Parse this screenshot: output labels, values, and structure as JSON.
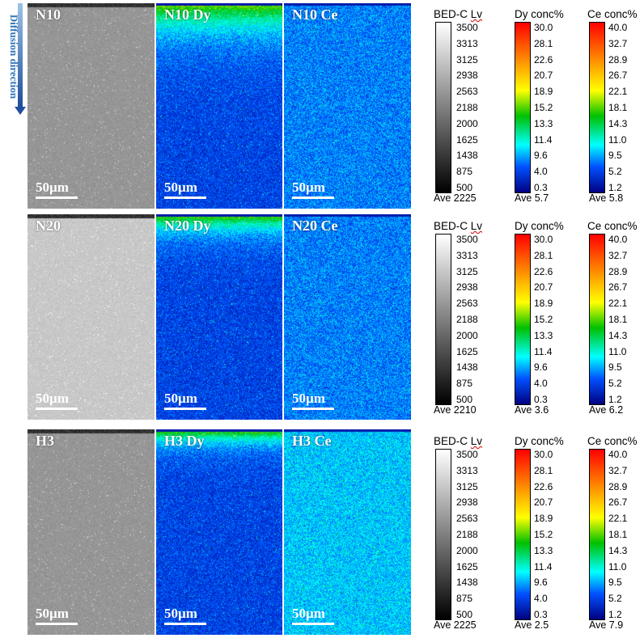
{
  "diffusion_label": "Diffusion direction",
  "rows": [
    {
      "bed_label": "N10",
      "dy_label": "N10 Dy",
      "ce_label": "N10 Ce",
      "scale": "50µm",
      "bed_legend": {
        "title": "BED-C Lv",
        "ticks": [
          "3500",
          "3313",
          "3125",
          "2938",
          "2563",
          "2188",
          "2000",
          "1625",
          "1438",
          "875",
          "500"
        ],
        "ave": "Ave 2225"
      },
      "dy_legend": {
        "title": "Dy conc%",
        "ticks": [
          "30.0",
          "28.1",
          "22.6",
          "20.7",
          "18.9",
          "15.2",
          "13.3",
          "11.4",
          "9.6",
          "4.0",
          "0.3"
        ],
        "ave": "Ave 5.7"
      },
      "ce_legend": {
        "title": "Ce conc%",
        "ticks": [
          "40.0",
          "32.7",
          "28.9",
          "26.7",
          "22.1",
          "18.1",
          "14.3",
          "11.0",
          "9.5",
          "5.2",
          "1.2"
        ],
        "ave": "Ave 5.8"
      }
    },
    {
      "bed_label": "N20",
      "dy_label": "N20 Dy",
      "ce_label": "N20 Ce",
      "scale": "50µm",
      "bed_legend": {
        "title": "BED-C Lv",
        "ticks": [
          "3500",
          "3313",
          "3125",
          "2938",
          "2563",
          "2188",
          "2000",
          "1625",
          "1438",
          "875",
          "500"
        ],
        "ave": "Ave 2210"
      },
      "dy_legend": {
        "title": "Dy conc%",
        "ticks": [
          "30.0",
          "28.1",
          "22.6",
          "20.7",
          "18.9",
          "15.2",
          "13.3",
          "11.4",
          "9.6",
          "4.0",
          "0.3"
        ],
        "ave": "Ave 3.6"
      },
      "ce_legend": {
        "title": "Ce conc%",
        "ticks": [
          "40.0",
          "32.7",
          "28.9",
          "26.7",
          "22.1",
          "18.1",
          "14.3",
          "11.0",
          "9.5",
          "5.2",
          "1.2"
        ],
        "ave": "Ave 6.2"
      }
    },
    {
      "bed_label": "H3",
      "dy_label": "H3 Dy",
      "ce_label": "H3 Ce",
      "scale": "50µm",
      "bed_legend": {
        "title": "BED-C Lv",
        "ticks": [
          "3500",
          "3313",
          "3125",
          "2938",
          "2563",
          "2188",
          "2000",
          "1625",
          "1438",
          "875",
          "500"
        ],
        "ave": "Ave 2225"
      },
      "dy_legend": {
        "title": "Dy conc%",
        "ticks": [
          "30.0",
          "28.1",
          "22.6",
          "20.7",
          "18.9",
          "15.2",
          "13.3",
          "11.4",
          "9.6",
          "4.0",
          "0.3"
        ],
        "ave": "Ave 2.5"
      },
      "ce_legend": {
        "title": "Ce conc%",
        "ticks": [
          "40.0",
          "32.7",
          "28.9",
          "26.7",
          "22.1",
          "18.1",
          "14.3",
          "11.0",
          "9.5",
          "5.2",
          "1.2"
        ],
        "ave": "Ave 7.9"
      }
    }
  ],
  "colors": {
    "arrow": "#1f4e9c",
    "diffusion_text": "#2e75b6",
    "map_low": "#0000a0",
    "map_mid": "#1e90ff",
    "map_high": "#00c000"
  }
}
